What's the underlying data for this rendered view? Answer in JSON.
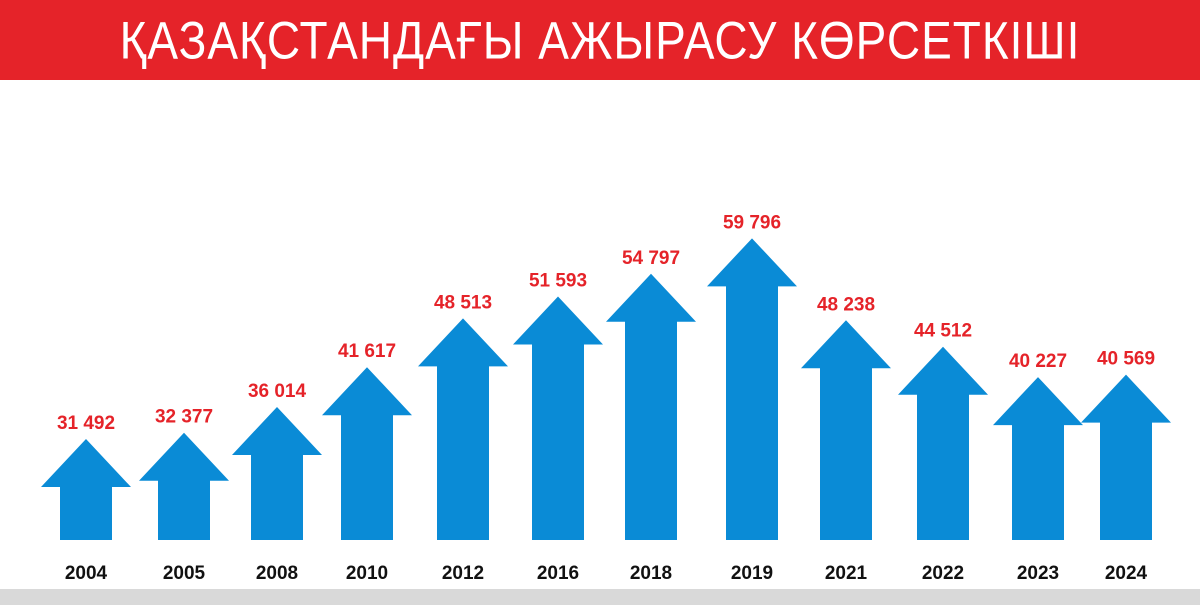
{
  "header": {
    "title": "ҚАЗАҚСТАНДАҒЫ АЖЫРАСУ КӨРСЕТКІШІ"
  },
  "colors": {
    "banner": "#e52329",
    "arrow": "#0a8bd6",
    "value_text": "#e52329",
    "year_text": "#111111",
    "footer": "#d9d9d9"
  },
  "chart_data": {
    "type": "bar",
    "title": "ҚАЗАҚСТАНДАҒЫ АЖЫРАСУ КӨРСЕТКІШІ",
    "categories": [
      "2004",
      "2005",
      "2008",
      "2010",
      "2012",
      "2016",
      "2018",
      "2019",
      "2021",
      "2022",
      "2023",
      "2024"
    ],
    "values": [
      31492,
      32377,
      36014,
      41617,
      48513,
      51593,
      54797,
      59796,
      48238,
      44512,
      40227,
      40569
    ],
    "value_labels": [
      "31 492",
      "32 377",
      "36 014",
      "41 617",
      "48 513",
      "51 593",
      "54 797",
      "59 796",
      "48 238",
      "44 512",
      "40 227",
      "40 569"
    ],
    "mark": "arrow",
    "xlabel": "",
    "ylabel": ""
  }
}
